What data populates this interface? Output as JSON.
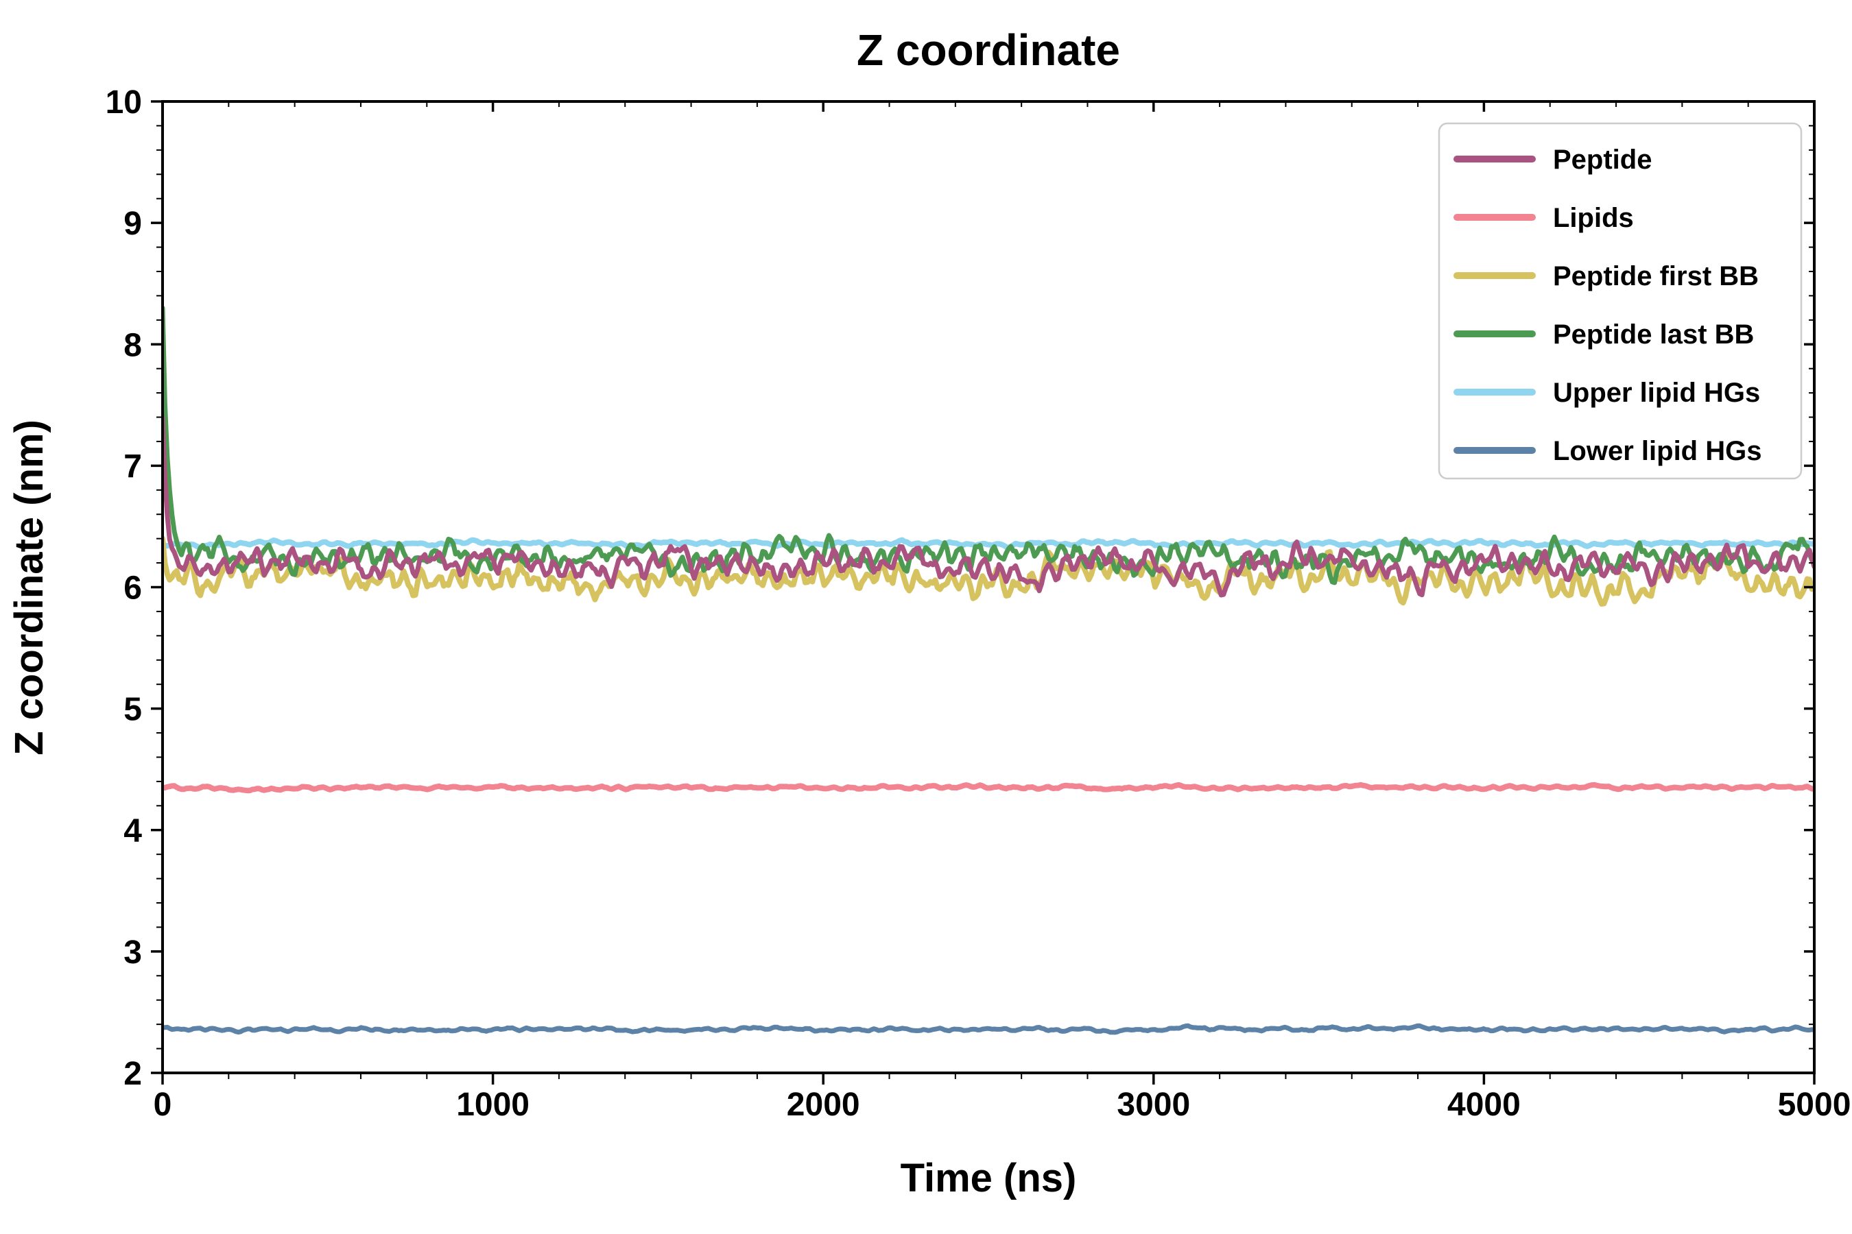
{
  "title": "Z coordinate",
  "colors": {
    "axis": "#000000",
    "background": "#ffffff",
    "legend_border": "#cccccc",
    "legend_background": "#ffffff"
  },
  "chart_data": {
    "type": "line",
    "title": "Z coordinate",
    "xlabel": "Time (ns)",
    "ylabel": "Z coordinate (nm)",
    "xlim": [
      0,
      5000
    ],
    "ylim": [
      2,
      10
    ],
    "x_ticks": [
      0,
      1000,
      2000,
      3000,
      4000,
      5000
    ],
    "y_ticks": [
      2,
      3,
      4,
      5,
      6,
      7,
      8,
      9,
      10
    ],
    "x_minor_step": 200,
    "y_minor_step": 0.2,
    "grid": false,
    "legend": {
      "position": "upper right",
      "entries": [
        "Peptide",
        "Lipids",
        "Peptide first BB",
        "Peptide last BB",
        "Upper lipid HGs",
        "Lower lipid HGs"
      ]
    },
    "series": [
      {
        "name": "Peptide",
        "color": "#ab5380",
        "mean": 6.2,
        "noise": 0.1,
        "start": 7.4,
        "seed": 11,
        "width": 7,
        "z": 4
      },
      {
        "name": "Lipids",
        "color": "#f28391",
        "mean": 4.35,
        "noise": 0.012,
        "start": null,
        "seed": 22,
        "width": 8,
        "z": 5
      },
      {
        "name": "Peptide first BB",
        "color": "#d6c35f",
        "mean": 6.06,
        "noise": 0.11,
        "start": 6.4,
        "seed": 33,
        "width": 8,
        "z": 2
      },
      {
        "name": "Peptide last BB",
        "color": "#4d9b52",
        "mean": 6.25,
        "noise": 0.1,
        "start": 8.3,
        "seed": 44,
        "width": 7,
        "z": 3
      },
      {
        "name": "Upper lipid HGs",
        "color": "#90d5f0",
        "mean": 6.36,
        "noise": 0.015,
        "start": null,
        "seed": 55,
        "width": 8,
        "z": 1
      },
      {
        "name": "Lower lipid HGs",
        "color": "#5d82a8",
        "mean": 2.36,
        "noise": 0.012,
        "start": null,
        "seed": 66,
        "width": 7,
        "z": 6
      }
    ],
    "approx_plateau_levels_nm": {
      "Peptide": 6.2,
      "Lipids": 4.35,
      "Peptide first BB": 6.05,
      "Peptide last BB": 6.25,
      "Upper lipid HGs": 6.35,
      "Lower lipid HGs": 2.35
    },
    "initial_spike_nm": {
      "Peptide last BB": 8.3,
      "Peptide": 7.4,
      "note": "peptide traces start high at t=0 and relax to plateau within ~50 ns"
    }
  }
}
